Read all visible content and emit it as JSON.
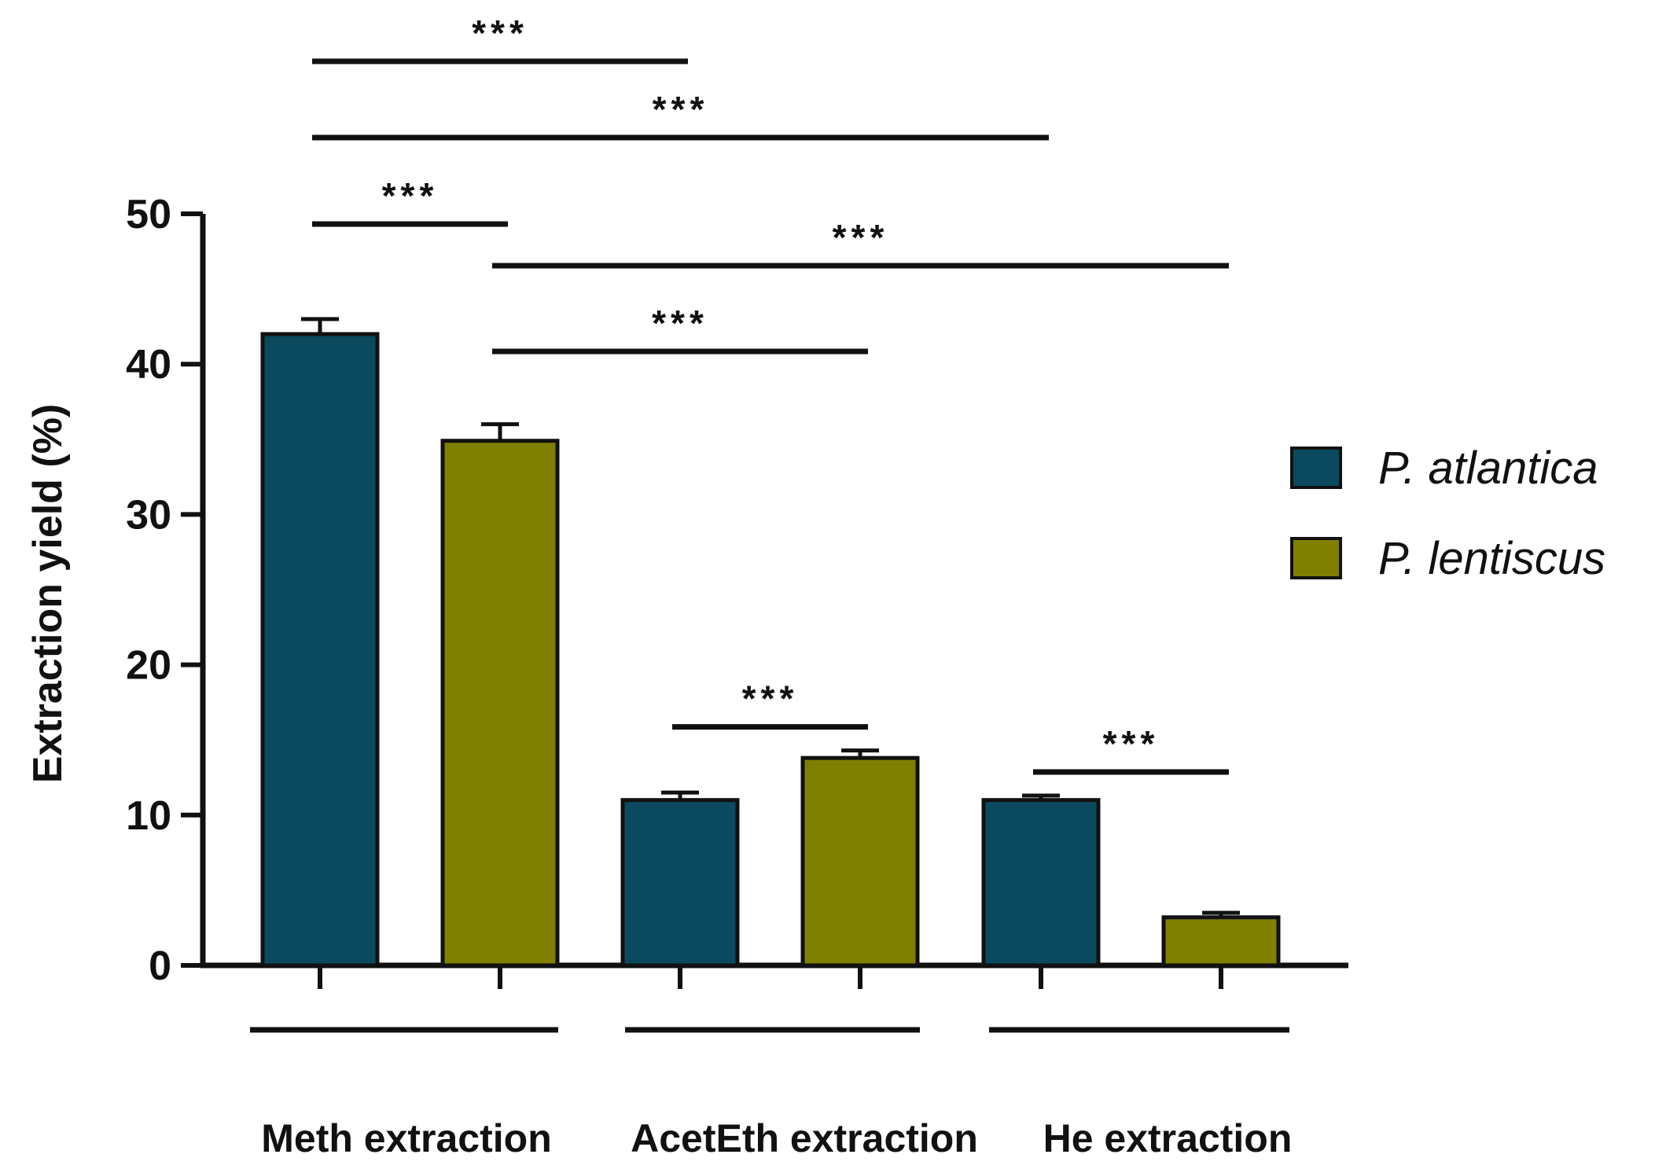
{
  "chart_data": {
    "type": "bar",
    "ylabel": "Extraction yield  (%)",
    "xlabel": "",
    "ylim": [
      0,
      50
    ],
    "yticks": [
      0,
      10,
      20,
      30,
      40,
      50
    ],
    "grid": false,
    "legend_position": "right",
    "groups": [
      "Meth extraction",
      "AcetEth extraction",
      "He extraction"
    ],
    "series": [
      {
        "name": "P. atlantica",
        "color": "#0b4a5e",
        "values": [
          42.0,
          11.0,
          11.0
        ],
        "errors": [
          1.0,
          0.5,
          0.3
        ]
      },
      {
        "name": "P. lentiscus",
        "color": "#808000",
        "values": [
          34.9,
          13.8,
          3.2
        ],
        "errors": [
          1.1,
          0.5,
          0.3
        ]
      }
    ],
    "significance": [
      {
        "label": "***",
        "from_bar": 0,
        "to_bar": 2,
        "level": 3
      },
      {
        "label": "***",
        "from_bar": 0,
        "to_bar": 4,
        "level": 4
      },
      {
        "label": "***",
        "from_bar": 0,
        "to_bar": 1,
        "level": 2
      },
      {
        "label": "***",
        "from_bar": 1,
        "to_bar": 5,
        "level": 1
      },
      {
        "label": "***",
        "from_bar": 1,
        "to_bar": 3,
        "level": 0
      },
      {
        "label": "***",
        "from_bar": 2,
        "to_bar": 3,
        "level": -1
      },
      {
        "label": "***",
        "from_bar": 4,
        "to_bar": 5,
        "level": -1
      }
    ]
  }
}
